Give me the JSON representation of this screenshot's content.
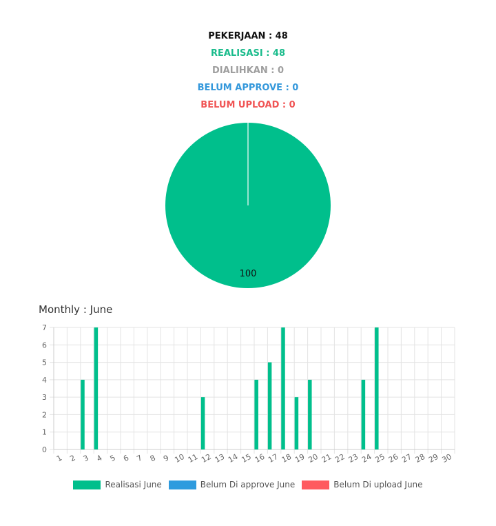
{
  "summary": {
    "pekerjaan": "PEKERJAAN : 48",
    "realisasi": "REALISASI : 48",
    "dialihkan": "DIALIHKAN : 0",
    "belum_approve": "BELUM APPROVE : 0",
    "belum_upload": "BELUM UPLOAD : 0"
  },
  "colors": {
    "pekerjaan": "#111111",
    "realisasi": "#1ABC8C",
    "dialihkan": "#9E9E9E",
    "belum_approve": "#3498DB",
    "belum_upload": "#F05454",
    "grid": "#E3E3E3",
    "axis_text": "#666666"
  },
  "monthly_title": "Monthly : June",
  "chart_data": [
    {
      "type": "pie",
      "slices": [
        {
          "value": 100,
          "label": "100",
          "color": "#00BF8C"
        }
      ]
    },
    {
      "type": "bar",
      "categories": [
        "1",
        "2",
        "3",
        "4",
        "5",
        "6",
        "7",
        "8",
        "9",
        "10",
        "11",
        "12",
        "13",
        "14",
        "15",
        "16",
        "17",
        "18",
        "19",
        "20",
        "21",
        "22",
        "23",
        "24",
        "25",
        "26",
        "27",
        "28",
        "29",
        "30"
      ],
      "series": [
        {
          "name": "Realisasi June",
          "color": "#00BF8C",
          "values": [
            0,
            0,
            4,
            7,
            0,
            0,
            0,
            0,
            0,
            0,
            0,
            3,
            0,
            0,
            0,
            4,
            5,
            7,
            3,
            4,
            0,
            0,
            0,
            4,
            7,
            0,
            0,
            0,
            0,
            0
          ]
        },
        {
          "name": "Belum Di approve June",
          "color": "#2E9BDE",
          "values": [
            0,
            0,
            0,
            0,
            0,
            0,
            0,
            0,
            0,
            0,
            0,
            0,
            0,
            0,
            0,
            0,
            0,
            0,
            0,
            0,
            0,
            0,
            0,
            0,
            0,
            0,
            0,
            0,
            0,
            0
          ]
        },
        {
          "name": "Belum Di upload June",
          "color": "#FF5A5F",
          "values": [
            0,
            0,
            0,
            0,
            0,
            0,
            0,
            0,
            0,
            0,
            0,
            0,
            0,
            0,
            0,
            0,
            0,
            0,
            0,
            0,
            0,
            0,
            0,
            0,
            0,
            0,
            0,
            0,
            0,
            0
          ]
        }
      ],
      "ylim": [
        0,
        7
      ],
      "yticks": [
        "0",
        "1",
        "2",
        "3",
        "4",
        "5",
        "6",
        "7"
      ],
      "grid": true,
      "legend": "bottom"
    }
  ]
}
